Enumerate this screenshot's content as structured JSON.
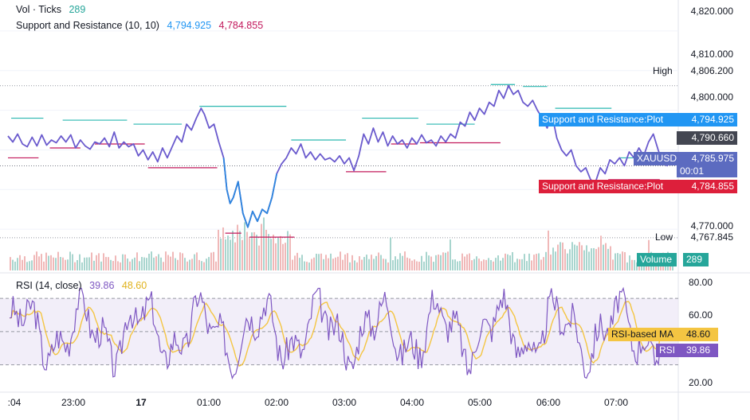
{
  "header": {
    "vol_label": "Vol · Ticks",
    "vol_value": "289",
    "sr_label": "Support and Resistance (10, 10)",
    "sr_res": "4,794.925",
    "sr_sup": "4,784.855",
    "rsi_label": "RSI (14, close)",
    "rsi_value": "39.86",
    "rsi_ma_value": "48.60"
  },
  "price_axis": {
    "ticks": [
      "4,820.000",
      "4,810.000",
      "4,800.000",
      "4,770.000"
    ],
    "high_label": "High",
    "high_value": "4,806.200",
    "low_label": "Low",
    "low_value": "4,767.845",
    "resistance_label": "Support and Resistance:Plot",
    "resistance_value": "4,794.925",
    "mid_value": "4,790.660",
    "symbol_label": "XAUUSD",
    "last_price": "4,785.975",
    "countdown": "00:01",
    "support_label": "Support and Resistance:Plot",
    "support_value": "4,784.855",
    "volume_label": "Volume",
    "volume_value": "289"
  },
  "rsi_axis": {
    "ticks": [
      "80.00",
      "60.00",
      "20.00"
    ],
    "ma_label": "RSI-based MA",
    "ma_value": "48.60",
    "rsi_label": "RSI",
    "rsi_value": "39.86"
  },
  "time_axis": {
    "labels": [
      ":04",
      "23:00",
      "17",
      "01:00",
      "02:00",
      "03:00",
      "04:00",
      "05:00",
      "06:00",
      "07:00"
    ]
  },
  "colors": {
    "price_line": "#6a5acd",
    "price_line_dip": "#2e86de",
    "resistance": "#2ab7b0",
    "support": "#c2185b",
    "resistance_badge": "#2196f3",
    "support_badge": "#dd1f3b",
    "last_price_badge": "#5c6bc0",
    "mid_badge": "#434651",
    "rsi_line": "#7e57c2",
    "rsi_ma": "#f4c542",
    "rsi_band": "#ede7f6",
    "volume_badge": "#26a69a",
    "volume_up": "#a8d5ce",
    "volume_down": "#f0b8b8"
  },
  "chart_data": {
    "type": "line",
    "symbol": "XAUUSD",
    "price_range": [
      4760,
      4825
    ],
    "high": 4806.2,
    "low": 4767.845,
    "last": 4785.975,
    "support_resistance": {
      "resistance": 4794.925,
      "support": 4784.855
    },
    "price_series": [
      {
        "t": 0.0,
        "v": 4793.5
      },
      {
        "t": 0.3,
        "v": 4792.0
      },
      {
        "t": 0.6,
        "v": 4794.0
      },
      {
        "t": 0.9,
        "v": 4791.5
      },
      {
        "t": 1.2,
        "v": 4790.8
      },
      {
        "t": 1.5,
        "v": 4793.2
      },
      {
        "t": 1.8,
        "v": 4791.0
      },
      {
        "t": 2.1,
        "v": 4793.8
      },
      {
        "t": 2.4,
        "v": 4791.2
      },
      {
        "t": 2.7,
        "v": 4792.5
      },
      {
        "t": 3.0,
        "v": 4791.8
      },
      {
        "t": 3.3,
        "v": 4793.5
      },
      {
        "t": 3.6,
        "v": 4792.0
      },
      {
        "t": 3.9,
        "v": 4793.8
      },
      {
        "t": 4.2,
        "v": 4790.5
      },
      {
        "t": 4.5,
        "v": 4792.5
      },
      {
        "t": 4.8,
        "v": 4791.0
      },
      {
        "t": 5.1,
        "v": 4790.2
      },
      {
        "t": 5.4,
        "v": 4792.0
      },
      {
        "t": 5.7,
        "v": 4791.5
      },
      {
        "t": 6.0,
        "v": 4793.0
      },
      {
        "t": 6.3,
        "v": 4790.8
      },
      {
        "t": 6.6,
        "v": 4794.5
      },
      {
        "t": 6.9,
        "v": 4790.5
      },
      {
        "t": 7.2,
        "v": 4792.0
      },
      {
        "t": 7.5,
        "v": 4790.8
      },
      {
        "t": 7.8,
        "v": 4791.5
      },
      {
        "t": 8.1,
        "v": 4788.5
      },
      {
        "t": 8.4,
        "v": 4790.0
      },
      {
        "t": 8.7,
        "v": 4787.5
      },
      {
        "t": 9.0,
        "v": 4789.5
      },
      {
        "t": 9.3,
        "v": 4787.0
      },
      {
        "t": 9.6,
        "v": 4790.5
      },
      {
        "t": 9.9,
        "v": 4788.0
      },
      {
        "t": 10.2,
        "v": 4790.8
      },
      {
        "t": 10.5,
        "v": 4793.5
      },
      {
        "t": 10.8,
        "v": 4792.0
      },
      {
        "t": 11.1,
        "v": 4796.5
      },
      {
        "t": 11.4,
        "v": 4795.0
      },
      {
        "t": 11.7,
        "v": 4798.0
      },
      {
        "t": 12.0,
        "v": 4800.5
      },
      {
        "t": 12.2,
        "v": 4799.0
      },
      {
        "t": 12.5,
        "v": 4795.5
      },
      {
        "t": 12.8,
        "v": 4796.5
      },
      {
        "t": 13.1,
        "v": 4792.0
      },
      {
        "t": 13.4,
        "v": 4788.0
      },
      {
        "t": 13.6,
        "v": 4780.0
      },
      {
        "t": 13.8,
        "v": 4776.5
      },
      {
        "t": 14.0,
        "v": 4778.0
      },
      {
        "t": 14.3,
        "v": 4782.0
      },
      {
        "t": 14.6,
        "v": 4774.0
      },
      {
        "t": 14.9,
        "v": 4770.5
      },
      {
        "t": 15.2,
        "v": 4774.5
      },
      {
        "t": 15.5,
        "v": 4772.0
      },
      {
        "t": 15.8,
        "v": 4775.0
      },
      {
        "t": 16.1,
        "v": 4774.0
      },
      {
        "t": 16.4,
        "v": 4778.0
      },
      {
        "t": 16.7,
        "v": 4784.0
      },
      {
        "t": 17.0,
        "v": 4786.5
      },
      {
        "t": 17.3,
        "v": 4788.0
      },
      {
        "t": 17.6,
        "v": 4790.5
      },
      {
        "t": 17.9,
        "v": 4789.0
      },
      {
        "t": 18.2,
        "v": 4791.5
      },
      {
        "t": 18.5,
        "v": 4788.0
      },
      {
        "t": 18.8,
        "v": 4789.5
      },
      {
        "t": 19.1,
        "v": 4787.5
      },
      {
        "t": 19.4,
        "v": 4789.0
      },
      {
        "t": 19.7,
        "v": 4787.5
      },
      {
        "t": 20.0,
        "v": 4788.0
      },
      {
        "t": 20.3,
        "v": 4787.0
      },
      {
        "t": 20.6,
        "v": 4788.5
      },
      {
        "t": 20.9,
        "v": 4786.5
      },
      {
        "t": 21.2,
        "v": 4788.0
      },
      {
        "t": 21.5,
        "v": 4784.8
      },
      {
        "t": 21.8,
        "v": 4788.5
      },
      {
        "t": 22.1,
        "v": 4794.0
      },
      {
        "t": 22.4,
        "v": 4791.5
      },
      {
        "t": 22.7,
        "v": 4795.5
      },
      {
        "t": 23.0,
        "v": 4792.0
      },
      {
        "t": 23.3,
        "v": 4794.5
      },
      {
        "t": 23.6,
        "v": 4791.0
      },
      {
        "t": 23.9,
        "v": 4793.5
      },
      {
        "t": 24.2,
        "v": 4791.5
      },
      {
        "t": 24.5,
        "v": 4792.5
      },
      {
        "t": 24.8,
        "v": 4790.5
      },
      {
        "t": 25.1,
        "v": 4793.0
      },
      {
        "t": 25.4,
        "v": 4791.5
      },
      {
        "t": 25.7,
        "v": 4793.8
      },
      {
        "t": 26.0,
        "v": 4791.8
      },
      {
        "t": 26.3,
        "v": 4792.5
      },
      {
        "t": 26.6,
        "v": 4791.0
      },
      {
        "t": 26.9,
        "v": 4793.5
      },
      {
        "t": 27.2,
        "v": 4792.0
      },
      {
        "t": 27.5,
        "v": 4794.0
      },
      {
        "t": 27.8,
        "v": 4793.0
      },
      {
        "t": 28.1,
        "v": 4797.0
      },
      {
        "t": 28.4,
        "v": 4796.0
      },
      {
        "t": 28.7,
        "v": 4799.5
      },
      {
        "t": 29.0,
        "v": 4797.5
      },
      {
        "t": 29.3,
        "v": 4800.5
      },
      {
        "t": 29.6,
        "v": 4799.0
      },
      {
        "t": 29.9,
        "v": 4802.0
      },
      {
        "t": 30.2,
        "v": 4801.0
      },
      {
        "t": 30.5,
        "v": 4805.0
      },
      {
        "t": 30.8,
        "v": 4803.0
      },
      {
        "t": 31.1,
        "v": 4806.2
      },
      {
        "t": 31.4,
        "v": 4804.0
      },
      {
        "t": 31.7,
        "v": 4805.0
      },
      {
        "t": 32.0,
        "v": 4802.0
      },
      {
        "t": 32.3,
        "v": 4801.0
      },
      {
        "t": 32.6,
        "v": 4802.5
      },
      {
        "t": 32.9,
        "v": 4800.0
      },
      {
        "t": 33.2,
        "v": 4798.0
      },
      {
        "t": 33.5,
        "v": 4795.5
      },
      {
        "t": 33.8,
        "v": 4799.0
      },
      {
        "t": 34.1,
        "v": 4793.0
      },
      {
        "t": 34.4,
        "v": 4790.0
      },
      {
        "t": 34.7,
        "v": 4788.5
      },
      {
        "t": 35.0,
        "v": 4790.0
      },
      {
        "t": 35.3,
        "v": 4786.0
      },
      {
        "t": 35.6,
        "v": 4784.5
      },
      {
        "t": 35.9,
        "v": 4785.5
      },
      {
        "t": 36.2,
        "v": 4782.5
      },
      {
        "t": 36.5,
        "v": 4781.8
      },
      {
        "t": 36.8,
        "v": 4785.5
      },
      {
        "t": 37.1,
        "v": 4784.0
      },
      {
        "t": 37.4,
        "v": 4787.5
      },
      {
        "t": 37.7,
        "v": 4786.5
      },
      {
        "t": 38.0,
        "v": 4788.0
      },
      {
        "t": 38.3,
        "v": 4786.0
      },
      {
        "t": 38.6,
        "v": 4789.5
      },
      {
        "t": 38.9,
        "v": 4788.0
      },
      {
        "t": 39.2,
        "v": 4790.5
      },
      {
        "t": 39.5,
        "v": 4788.5
      },
      {
        "t": 39.8,
        "v": 4792.0
      },
      {
        "t": 40.1,
        "v": 4794.0
      },
      {
        "t": 40.4,
        "v": 4790.0
      },
      {
        "t": 40.7,
        "v": 4786.5
      },
      {
        "t": 41.0,
        "v": 4785.975
      }
    ],
    "resistance_segments": [
      {
        "t0": 0.2,
        "t1": 2.2,
        "v": 4798.0
      },
      {
        "t0": 3.4,
        "t1": 7.4,
        "v": 4797.5
      },
      {
        "t0": 7.8,
        "t1": 10.8,
        "v": 4796.5
      },
      {
        "t0": 11.9,
        "t1": 17.3,
        "v": 4801.0
      },
      {
        "t0": 17.6,
        "t1": 21.0,
        "v": 4792.5
      },
      {
        "t0": 22.0,
        "t1": 25.5,
        "v": 4798.0
      },
      {
        "t0": 26.0,
        "t1": 29.0,
        "v": 4796.5
      },
      {
        "t0": 30.0,
        "t1": 31.5,
        "v": 4806.5
      },
      {
        "t0": 32.0,
        "t1": 33.5,
        "v": 4806.0
      },
      {
        "t0": 34.0,
        "t1": 37.5,
        "v": 4800.5
      },
      {
        "t0": 38.0,
        "t1": 40.0,
        "v": 4788.0
      }
    ],
    "support_segments": [
      {
        "t0": 0.0,
        "t1": 1.9,
        "v": 4788.0
      },
      {
        "t0": 2.6,
        "t1": 4.5,
        "v": 4790.5
      },
      {
        "t0": 5.4,
        "t1": 8.5,
        "v": 4791.5
      },
      {
        "t0": 8.7,
        "t1": 13.0,
        "v": 4785.5
      },
      {
        "t0": 13.5,
        "t1": 14.5,
        "v": 4769.0
      },
      {
        "t0": 15.0,
        "t1": 17.8,
        "v": 4768.0
      },
      {
        "t0": 21.0,
        "t1": 23.5,
        "v": 4784.5
      },
      {
        "t0": 23.8,
        "t1": 25.4,
        "v": 4791.5
      },
      {
        "t0": 25.6,
        "t1": 30.6,
        "v": 4791.8
      },
      {
        "t0": 37.3,
        "t1": 40.5,
        "v": 4782.5
      }
    ],
    "rsi_range": [
      15,
      82
    ],
    "rsi_levels": [
      70,
      50,
      30
    ],
    "rsi_last": 39.86,
    "rsi_ma_last": 48.6
  }
}
